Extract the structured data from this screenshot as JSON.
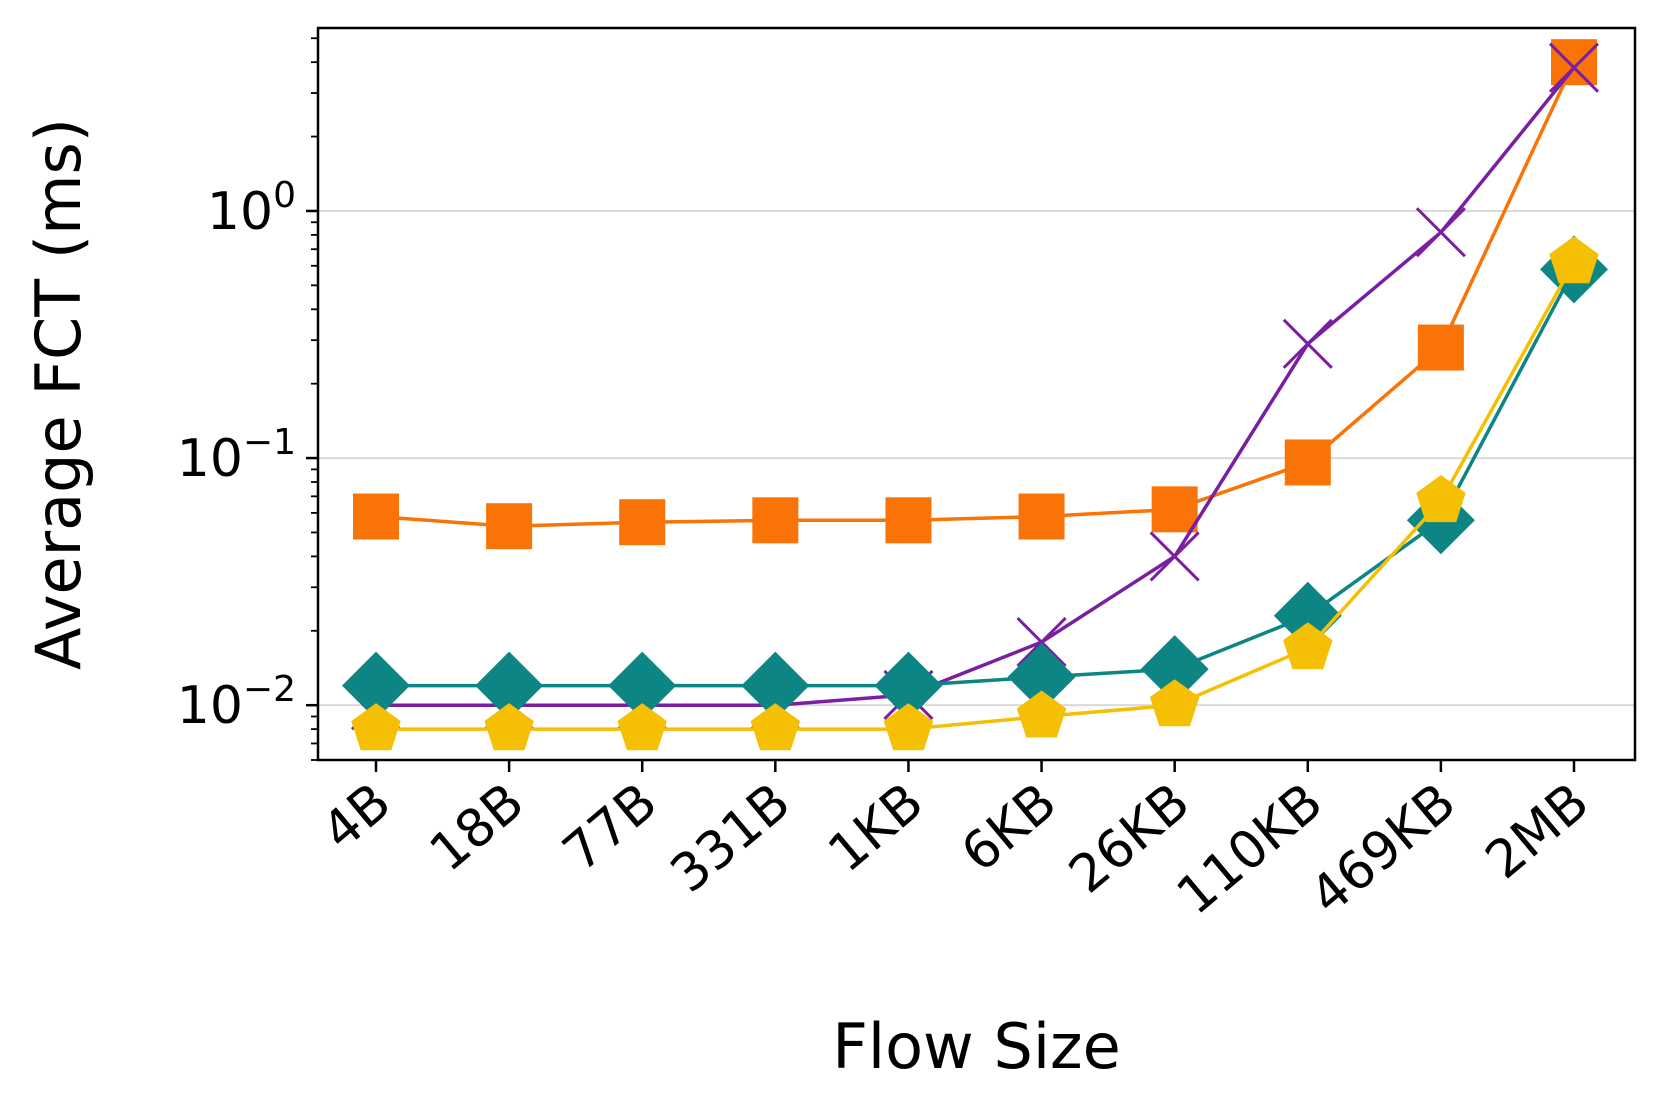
{
  "chart_data": {
    "type": "line",
    "title": "",
    "xlabel": "Flow Size",
    "ylabel": "Average FCT (ms)",
    "yscale": "log",
    "ylim": [
      0.006,
      5.5
    ],
    "categories": [
      "4B",
      "18B",
      "77B",
      "331B",
      "1KB",
      "6KB",
      "26KB",
      "110KB",
      "469KB",
      "2MB"
    ],
    "yticks": [
      {
        "value": 0.01,
        "base": "10",
        "exp": "−2"
      },
      {
        "value": 0.1,
        "base": "10",
        "exp": "−1"
      },
      {
        "value": 1,
        "base": "10",
        "exp": "0"
      }
    ],
    "grid": "horizontal major",
    "legend": "none",
    "series": [
      {
        "color": "#f97306",
        "marker": "square",
        "values": [
          0.058,
          0.053,
          0.055,
          0.056,
          0.056,
          0.058,
          0.062,
          0.096,
          0.28,
          4.0
        ]
      },
      {
        "color": "#7b1fa2",
        "marker": "x",
        "values": [
          0.01,
          0.01,
          0.01,
          0.01,
          0.011,
          0.018,
          0.04,
          0.29,
          0.82,
          3.8
        ]
      },
      {
        "color": "#0e8585",
        "marker": "diamond",
        "values": [
          0.012,
          0.012,
          0.012,
          0.012,
          0.012,
          0.013,
          0.014,
          0.023,
          0.056,
          0.58
        ]
      },
      {
        "color": "#f5bf03",
        "marker": "pentagon",
        "values": [
          0.008,
          0.008,
          0.008,
          0.008,
          0.008,
          0.009,
          0.01,
          0.017,
          0.067,
          0.62
        ]
      }
    ]
  }
}
